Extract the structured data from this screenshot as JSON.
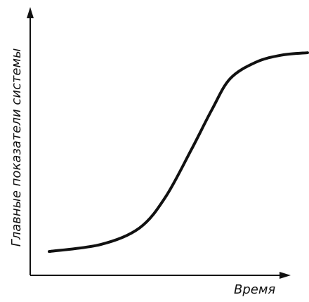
{
  "chart_data": {
    "type": "line",
    "title": "",
    "xlabel": "Время",
    "ylabel": "Главные показатели системы",
    "grid": false,
    "legend": "none",
    "series": [
      {
        "values": [
          {
            "x": 0.0,
            "y": 0.05
          },
          {
            "x": 0.2,
            "y": 0.08
          },
          {
            "x": 0.35,
            "y": 0.15
          },
          {
            "x": 0.45,
            "y": 0.28
          },
          {
            "x": 0.55,
            "y": 0.48
          },
          {
            "x": 0.63,
            "y": 0.65
          },
          {
            "x": 0.7,
            "y": 0.78
          },
          {
            "x": 0.8,
            "y": 0.85
          },
          {
            "x": 0.9,
            "y": 0.88
          },
          {
            "x": 1.0,
            "y": 0.89
          }
        ]
      }
    ],
    "xlim": [
      0,
      1
    ],
    "ylim": [
      0,
      1
    ]
  },
  "colors": {
    "ink": "#111111",
    "background": "#ffffff"
  }
}
